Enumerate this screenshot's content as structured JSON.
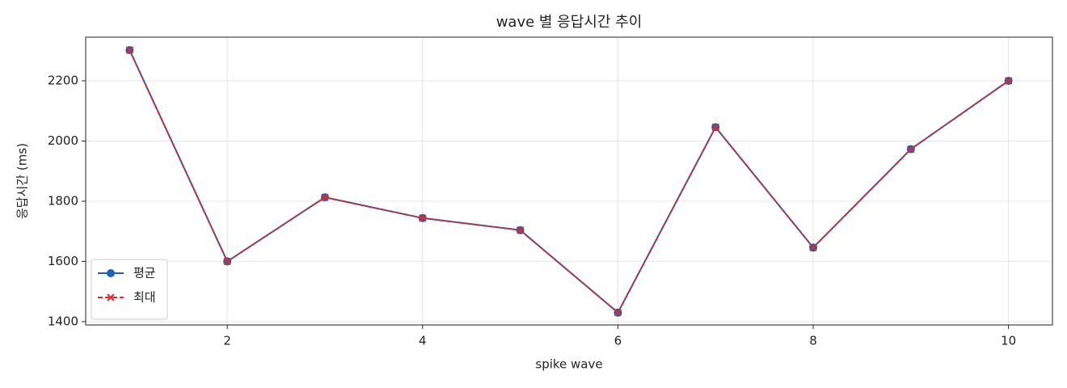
{
  "chart_data": {
    "type": "line",
    "title": "wave 별 응답시간 추이",
    "x_label": "spike wave",
    "y_label": "응답시간 (ms)",
    "x": [
      1,
      2,
      3,
      4,
      5,
      6,
      7,
      8,
      9,
      10
    ],
    "series": [
      {
        "name": "평균",
        "color": "#1f5fb4",
        "marker": "o",
        "linestyle": "solid",
        "values": [
          2302,
          1600,
          1813,
          1744,
          1704,
          1430,
          2046,
          1646,
          1973,
          2200
        ]
      },
      {
        "name": "최대",
        "color": "#d03030",
        "marker": "x",
        "linestyle": "dashed",
        "values": [
          2302,
          1600,
          1813,
          1744,
          1704,
          1430,
          2046,
          1646,
          1973,
          2200
        ]
      }
    ],
    "xlim": [
      0.55,
      10.45
    ],
    "xticks": [
      2,
      4,
      6,
      8,
      10
    ],
    "ylim": [
      1389,
      2345
    ],
    "yticks": [
      1400,
      1600,
      1800,
      2000,
      2200
    ],
    "grid": true,
    "legend": "lower left"
  }
}
